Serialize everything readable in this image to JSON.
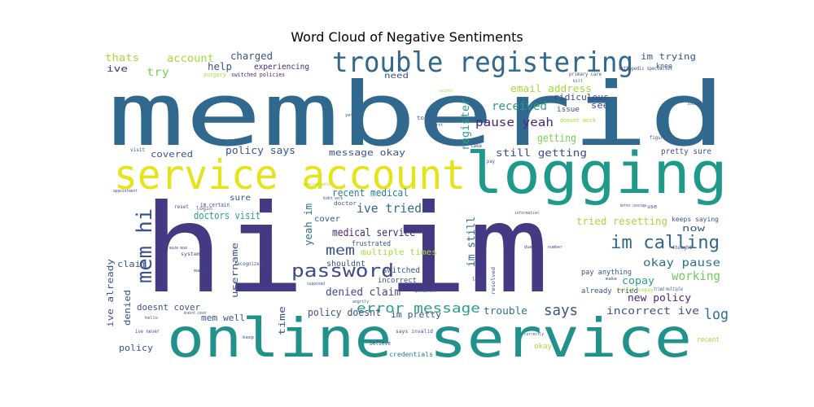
{
  "figure": {
    "title": "Word Cloud of Negative Sentiments"
  },
  "words": [
    {
      "text": "memberid",
      "color": "#31688e"
    },
    {
      "text": "hi im",
      "color": "#443a83"
    },
    {
      "text": "online service",
      "color": "#21918c"
    },
    {
      "text": "logging",
      "color": "#1f9a8a"
    },
    {
      "text": "service account",
      "color": "#e4e419"
    },
    {
      "text": "trouble registering",
      "color": "#31688e"
    },
    {
      "text": "mem hi",
      "color": "#3b528b"
    },
    {
      "text": "im calling",
      "color": "#31688e"
    },
    {
      "text": "password",
      "color": "#3e4a89"
    },
    {
      "text": "error message",
      "color": "#2a9f87"
    },
    {
      "text": "says",
      "color": "#3b528b"
    },
    {
      "text": "log",
      "color": "#2c718e"
    },
    {
      "text": "mem",
      "color": "#3b528b"
    },
    {
      "text": "ive tried",
      "color": "#31688e"
    },
    {
      "text": "working",
      "color": "#6ece58"
    },
    {
      "text": "okay pause",
      "color": "#2c718e"
    },
    {
      "text": "medical service",
      "color": "#482878"
    },
    {
      "text": "recent medical",
      "color": "#26828e"
    },
    {
      "text": "denied claim",
      "color": "#3e4a89"
    },
    {
      "text": "pause yeah",
      "color": "#482878"
    },
    {
      "text": "received",
      "color": "#2a9f87"
    },
    {
      "text": "getting",
      "color": "#7ad151"
    },
    {
      "text": "still getting",
      "color": "#3e4a89"
    },
    {
      "text": "email address",
      "color": "#a5db36"
    },
    {
      "text": "ridiculous",
      "color": "#3e4a89"
    },
    {
      "text": "register",
      "color": "#2a9f87"
    },
    {
      "text": "im still",
      "color": "#2c718e"
    },
    {
      "text": "yeah im",
      "color": "#2c718e"
    },
    {
      "text": "tried resetting",
      "color": "#a5db36"
    },
    {
      "text": "copay",
      "color": "#2a9f87"
    },
    {
      "text": "new policy",
      "color": "#482878"
    },
    {
      "text": "incorrect ive",
      "color": "#3b528b"
    },
    {
      "text": "trouble",
      "color": "#2c718e"
    },
    {
      "text": "policy doesnt",
      "color": "#3b528b"
    },
    {
      "text": "im pretty",
      "color": "#3b528b"
    },
    {
      "text": "doesnt cover",
      "color": "#3b528b"
    },
    {
      "text": "mem well",
      "color": "#3b528b"
    },
    {
      "text": "username",
      "color": "#3b528b"
    },
    {
      "text": "time",
      "color": "#3b528b"
    },
    {
      "text": "ive already",
      "color": "#3b528b"
    },
    {
      "text": "denied",
      "color": "#3b528b"
    },
    {
      "text": "claim",
      "color": "#3b528b"
    },
    {
      "text": "policy",
      "color": "#3b528b"
    },
    {
      "text": "doctors visit",
      "color": "#2a9f87"
    },
    {
      "text": "message okay",
      "color": "#3b528b"
    },
    {
      "text": "policy says",
      "color": "#3b528b"
    },
    {
      "text": "covered",
      "color": "#3b528b"
    },
    {
      "text": "charged",
      "color": "#3b528b"
    },
    {
      "text": "help",
      "color": "#3b528b"
    },
    {
      "text": "try",
      "color": "#7ad151"
    },
    {
      "text": "account",
      "color": "#a5db36"
    },
    {
      "text": "thats",
      "color": "#a5db36"
    },
    {
      "text": "ive",
      "color": "#482878"
    },
    {
      "text": "experiencing",
      "color": "#482878"
    },
    {
      "text": "need",
      "color": "#3b528b"
    },
    {
      "text": "im trying",
      "color": "#3b528b"
    },
    {
      "text": "see",
      "color": "#3b528b"
    },
    {
      "text": "issue",
      "color": "#3b528b"
    },
    {
      "text": "now",
      "color": "#3b528b"
    },
    {
      "text": "pretty sure",
      "color": "#3b528b"
    },
    {
      "text": "cover",
      "color": "#3b528b"
    },
    {
      "text": "sure",
      "color": "#3b528b"
    },
    {
      "text": "shouldnt",
      "color": "#3b528b"
    },
    {
      "text": "switched",
      "color": "#3b528b"
    },
    {
      "text": "multiple times",
      "color": "#a5db36"
    },
    {
      "text": "already tried",
      "color": "#3b528b"
    },
    {
      "text": "keeps saying",
      "color": "#3b528b"
    },
    {
      "text": "pay anything",
      "color": "#3b528b"
    },
    {
      "text": "frustrated",
      "color": "#3b528b"
    },
    {
      "text": "incorrect",
      "color": "#3b528b"
    },
    {
      "text": "credentials",
      "color": "#26828e"
    },
    {
      "text": "okay",
      "color": "#a5db36"
    },
    {
      "text": "recent",
      "color": "#a5db36"
    },
    {
      "text": "knee",
      "color": "#3b528b"
    },
    {
      "text": "surgery",
      "color": "#a5db36"
    },
    {
      "text": "switched policies",
      "color": "#482878"
    },
    {
      "text": "orthopedic specialist",
      "color": "#3b528b"
    },
    {
      "text": "primary care",
      "color": "#3b528b"
    },
    {
      "text": "doesnt work",
      "color": "#a5db36"
    },
    {
      "text": "told",
      "color": "#3b528b"
    },
    {
      "text": "im certain",
      "color": "#3b528b"
    },
    {
      "text": "doctor",
      "color": "#3b528b"
    },
    {
      "text": "login",
      "color": "#3b528b"
    },
    {
      "text": "visit",
      "color": "#3b528b"
    },
    {
      "text": "reset",
      "color": "#3b528b"
    },
    {
      "text": "use",
      "color": "#3b528b"
    },
    {
      "text": "figure",
      "color": "#3b528b"
    },
    {
      "text": "thought",
      "color": "#3b528b"
    },
    {
      "text": "recognized",
      "color": "#3b528b"
    },
    {
      "text": "system",
      "color": "#3b528b"
    },
    {
      "text": "resolved",
      "color": "#3b528b"
    },
    {
      "text": "says invalid",
      "color": "#3b528b"
    },
    {
      "text": "believe",
      "color": "#3b528b"
    },
    {
      "text": "correctly",
      "color": "#3b528b"
    },
    {
      "text": "ive never",
      "color": "#3b528b"
    },
    {
      "text": "angrily",
      "color": "#3b528b"
    },
    {
      "text": "let",
      "color": "#3b528b"
    },
    {
      "text": "take",
      "color": "#3b528b"
    },
    {
      "text": "due",
      "color": "#3b528b"
    },
    {
      "text": "number",
      "color": "#3b528b"
    },
    {
      "text": "tried multiple",
      "color": "#3b528b"
    },
    {
      "text": "recent copay",
      "color": "#a5db36"
    },
    {
      "text": "pay",
      "color": "#3b528b"
    },
    {
      "text": "make",
      "color": "#3b528b"
    },
    {
      "text": "bill",
      "color": "#3b528b"
    },
    {
      "text": "locked",
      "color": "#3b528b"
    },
    {
      "text": "appointment",
      "color": "#3b528b"
    },
    {
      "text": "information",
      "color": "#3b528b"
    },
    {
      "text": "specialist",
      "color": "#3b528b"
    },
    {
      "text": "supposed",
      "color": "#3b528b"
    },
    {
      "text": "unacceptable",
      "color": "#a5db36"
    },
    {
      "text": "better coverage",
      "color": "#3b528b"
    },
    {
      "text": "didnt work",
      "color": "#3b528b"
    },
    {
      "text": "maybe mean",
      "color": "#3b528b"
    },
    {
      "text": "doesnt cover",
      "color": "#3b528b"
    },
    {
      "text": "access",
      "color": "#a5db36"
    },
    {
      "text": "yet",
      "color": "#3b528b"
    },
    {
      "text": "first",
      "color": "#3b528b"
    },
    {
      "text": "hello",
      "color": "#3b528b"
    },
    {
      "text": "mam",
      "color": "#3b528b"
    },
    {
      "text": "keep",
      "color": "#3b528b"
    }
  ]
}
